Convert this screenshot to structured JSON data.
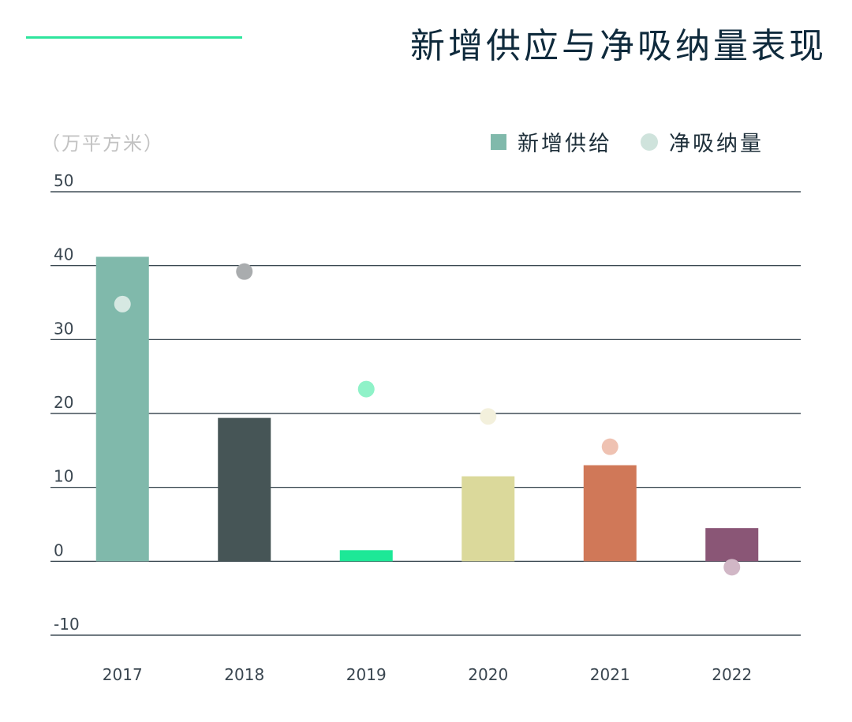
{
  "title": "新增供应与净吸纳量表现",
  "unit_label": "（万平方米）",
  "legend": {
    "supply_label": "新增供给",
    "absorption_label": "净吸纳量",
    "supply_color": "#80b9ab",
    "absorption_color": "#cfe3dc"
  },
  "colors": {
    "accent": "#2ee59d",
    "grid": "#1b2b36"
  },
  "chart_data": {
    "type": "bar",
    "categories": [
      "2017",
      "2018",
      "2019",
      "2020",
      "2021",
      "2022"
    ],
    "series": [
      {
        "name": "新增供给",
        "type": "bar",
        "values": [
          41.2,
          19.4,
          1.5,
          11.5,
          13.0,
          4.5
        ],
        "colors": [
          "#80b9ab",
          "#465556",
          "#1de897",
          "#dbd99b",
          "#d07858",
          "#8a5676"
        ]
      },
      {
        "name": "净吸纳量",
        "type": "scatter",
        "values": [
          34.8,
          39.2,
          23.3,
          19.6,
          15.5,
          -0.8
        ],
        "colors": [
          "#d6e8e2",
          "#a9acae",
          "#8ff2c8",
          "#f3f0dc",
          "#efc2b2",
          "#d1b7c6"
        ]
      }
    ],
    "ylim": [
      -10,
      50
    ],
    "yticks": [
      "50",
      "40",
      "30",
      "20",
      "10",
      "0",
      "-10"
    ],
    "grid": true,
    "legend_position": "top-right"
  }
}
